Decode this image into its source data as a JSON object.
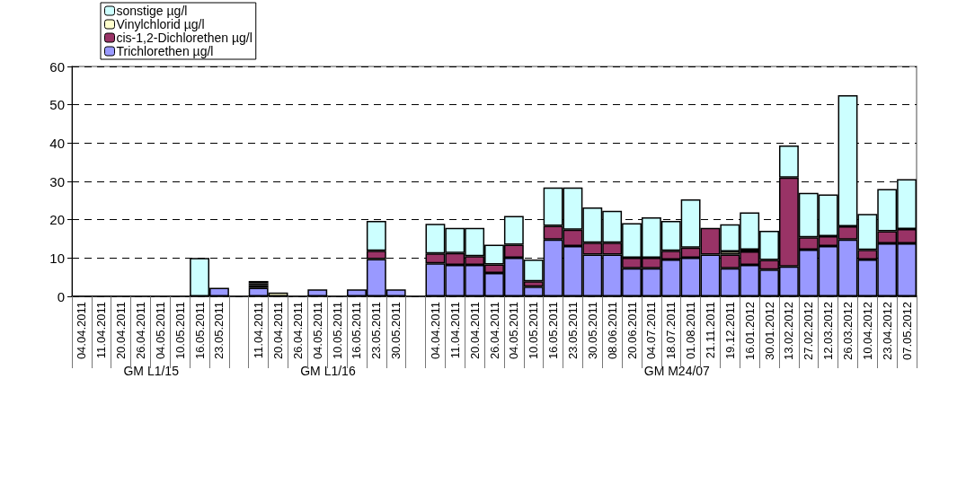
{
  "chart_data": {
    "type": "bar",
    "stacked": true,
    "categories": [
      "04.04.2011",
      "11.04.2011",
      "20.04.2011",
      "26.04.2011",
      "04.05.2011",
      "10.05.2011",
      "16.05.2011",
      "23.05.2011",
      null,
      "11.04.2011",
      "20.04.2011",
      "26.04.2011",
      "04.05.2011",
      "10.05.2011",
      "16.05.2011",
      "23.05.2011",
      "30.05.2011",
      null,
      "04.04.2011",
      "11.04.2011",
      "20.04.2011",
      "26.04.2011",
      "04.05.2011",
      "10.05.2011",
      "16.05.2011",
      "23.05.2011",
      "30.05.2011",
      "08.06.2011",
      "20.06.2011",
      "04.07.2011",
      "18.07.2011",
      "01.08.2011",
      "21.11.2011",
      "19.12.2011",
      "16.01.2012",
      "30.01.2012",
      "13.02.2012",
      "27.02.2012",
      "12.03.2012",
      "26.03.2012",
      "10.04.2012",
      "23.04.2012",
      "07.05.2012"
    ],
    "series": [
      {
        "name": "Trichlorethen µg/l",
        "color": "#9999ff",
        "values": [
          null,
          null,
          null,
          null,
          null,
          null,
          null,
          2.2,
          null,
          2.2,
          null,
          null,
          1.8,
          null,
          1.8,
          9.7,
          1.8,
          null,
          8.6,
          8.2,
          8.2,
          6.1,
          10.1,
          2.5,
          14.8,
          13.1,
          10.9,
          10.9,
          7.3,
          7.3,
          9.6,
          10.1,
          10.9,
          7.3,
          8.2,
          7.0,
          7.8,
          12.2,
          13.1,
          14.8,
          9.6,
          13.8,
          13.8
        ]
      },
      {
        "name": "cis-1,2-Dichlorethen µg/l",
        "color": "#993366",
        "values": [
          null,
          null,
          null,
          null,
          null,
          null,
          null,
          null,
          null,
          0.7,
          null,
          null,
          null,
          null,
          null,
          2.2,
          null,
          null,
          2.6,
          3.1,
          2.3,
          2.2,
          3.4,
          1.4,
          3.6,
          4.3,
          3.1,
          3.1,
          2.8,
          2.8,
          2.3,
          2.6,
          7.0,
          3.6,
          3.5,
          2.5,
          23.2,
          3.2,
          2.6,
          3.5,
          2.5,
          3.2,
          3.8
        ]
      },
      {
        "name": "Vinylchlorid µg/l",
        "color": "#ffffcc",
        "values": [
          null,
          null,
          null,
          null,
          null,
          null,
          null,
          null,
          null,
          0.5,
          1.0,
          null,
          null,
          null,
          null,
          null,
          null,
          null,
          null,
          null,
          null,
          null,
          null,
          null,
          null,
          null,
          null,
          null,
          null,
          null,
          null,
          null,
          null,
          0.8,
          0.5,
          null,
          null,
          null,
          null,
          null,
          null,
          null,
          null
        ]
      },
      {
        "name": "sonstige µg/l",
        "color": "#ccffff",
        "values": [
          null,
          null,
          null,
          null,
          null,
          null,
          10.0,
          null,
          null,
          0.6,
          null,
          null,
          null,
          null,
          null,
          7.8,
          null,
          null,
          7.7,
          6.6,
          7.4,
          5.2,
          7.5,
          5.7,
          10.0,
          11.0,
          9.2,
          8.3,
          9.0,
          10.5,
          7.8,
          12.6,
          null,
          7.1,
          9.7,
          7.6,
          8.4,
          11.6,
          10.9,
          34.2,
          9.4,
          11.0,
          13.0
        ]
      }
    ],
    "ylim": [
      0,
      60
    ],
    "yticks": [
      0,
      10,
      20,
      30,
      40,
      50,
      60
    ],
    "grid": "y",
    "legend": "top left",
    "annotations": [
      "GM L1/15",
      "GM L1/16",
      "GM M24/07"
    ]
  }
}
